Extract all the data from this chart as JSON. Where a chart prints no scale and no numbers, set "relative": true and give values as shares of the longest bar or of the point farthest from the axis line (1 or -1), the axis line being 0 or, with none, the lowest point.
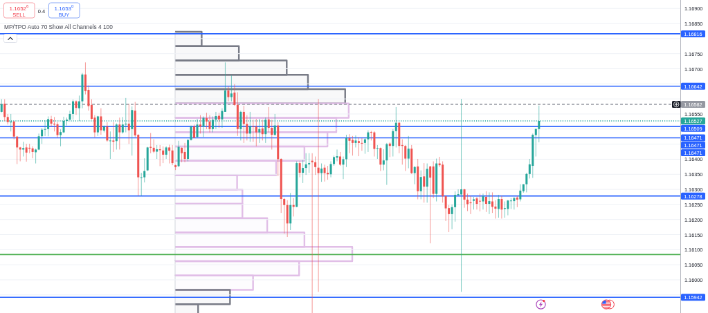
{
  "chart_data": [
    {
      "type": "candlestick",
      "title": "MP/TPO Auto 70 Show All Channels 4 100",
      "annotations": [
        "1.1652$^{6}$",
        "SELL",
        "0.4",
        "1.1653$^{0}$",
        "BUY",
        "1.16471",
        "1.16471"
      ],
      "categories": [
        null,
        null,
        null,
        null,
        null,
        null,
        null,
        null,
        null,
        null,
        null,
        null,
        null,
        null,
        null,
        null,
        null,
        null,
        null,
        null,
        null,
        null,
        null,
        null,
        null,
        null,
        null,
        null,
        null,
        null,
        null,
        null,
        null,
        null,
        null,
        null,
        null,
        null,
        null,
        null,
        null,
        null,
        null,
        null,
        null,
        null,
        null,
        null,
        null,
        null,
        null,
        null,
        null,
        null,
        null,
        null,
        null,
        null,
        null,
        null,
        null,
        null,
        null,
        null,
        null,
        null,
        null,
        null,
        null,
        null,
        null,
        null,
        null,
        null,
        null,
        null,
        null,
        null,
        null,
        null,
        null,
        null,
        null,
        null,
        null,
        null,
        null,
        null,
        null,
        null,
        null,
        null,
        null,
        null,
        null,
        null,
        null,
        null,
        null,
        null,
        null,
        null,
        null,
        null,
        null,
        null,
        null,
        null,
        null,
        null,
        null,
        null,
        null,
        null,
        null,
        null,
        null,
        null,
        null,
        null,
        null,
        null,
        null,
        null,
        null,
        null,
        null,
        null,
        null,
        null,
        null,
        null,
        null,
        null,
        null,
        null,
        null,
        null,
        null,
        null,
        null,
        null,
        null,
        null,
        null,
        null,
        null,
        null,
        null,
        null,
        null,
        null,
        null,
        null,
        null,
        null,
        null,
        null,
        null,
        null,
        null,
        null,
        null,
        null,
        null,
        null,
        null,
        null,
        null,
        null,
        null,
        null,
        null,
        null,
        null,
        null,
        null,
        null,
        null,
        null,
        null,
        null,
        null,
        null,
        null,
        null,
        null,
        null,
        null,
        null,
        null,
        null,
        null,
        null,
        null,
        null,
        null,
        null,
        null,
        null,
        null,
        null,
        null,
        null,
        null,
        null,
        null,
        null,
        null,
        null,
        null,
        null,
        null,
        null,
        null,
        null,
        null,
        null,
        null
      ],
      "ohlc": [
        [
          1.16557,
          1.16599,
          1.16555,
          1.16582
        ],
        [
          1.16584,
          1.16599,
          1.16527,
          1.1654
        ],
        [
          1.1654,
          1.1655,
          1.16515,
          1.16523
        ],
        [
          1.16522,
          1.1655,
          1.16492,
          1.16525
        ],
        [
          1.16525,
          1.16527,
          1.16466,
          1.16475
        ],
        [
          1.16475,
          1.16477,
          1.16384,
          1.16439
        ],
        [
          1.16439,
          1.16441,
          1.16393,
          1.16432
        ],
        [
          1.16432,
          1.16458,
          1.16409,
          1.16437
        ],
        [
          1.16439,
          1.16451,
          1.16392,
          1.16422
        ],
        [
          1.16438,
          1.16451,
          1.1642,
          1.16435
        ],
        [
          1.16436,
          1.16443,
          1.16403,
          1.16424
        ],
        [
          1.16423,
          1.16435,
          1.16386,
          1.16432
        ],
        [
          1.16432,
          1.16485,
          1.1643,
          1.16476
        ],
        [
          1.16476,
          1.16504,
          1.16451,
          1.16498
        ],
        [
          1.16498,
          1.16529,
          1.16477,
          1.165
        ],
        [
          1.165,
          1.16542,
          1.16476,
          1.16533
        ],
        [
          1.16533,
          1.16544,
          1.16508,
          1.16518
        ],
        [
          1.16518,
          1.1654,
          1.16492,
          1.16515
        ],
        [
          1.16516,
          1.16523,
          1.16471,
          1.1648
        ],
        [
          1.1648,
          1.16499,
          1.16443,
          1.1649
        ],
        [
          1.16489,
          1.16541,
          1.16487,
          1.16527
        ],
        [
          1.16527,
          1.16538,
          1.16512,
          1.16531
        ],
        [
          1.16531,
          1.16561,
          1.16529,
          1.1655
        ],
        [
          1.1655,
          1.16598,
          1.16531,
          1.16592
        ],
        [
          1.16592,
          1.16595,
          1.16547,
          1.1657
        ],
        [
          1.16569,
          1.16611,
          1.16527,
          1.16592
        ],
        [
          1.16592,
          1.16686,
          1.16569,
          1.16681
        ],
        [
          1.16681,
          1.16721,
          1.16615,
          1.16626
        ],
        [
          1.1663,
          1.16645,
          1.16561,
          1.16576
        ],
        [
          1.1658,
          1.16599,
          1.16531,
          1.16534
        ],
        [
          1.16538,
          1.16546,
          1.16473,
          1.16489
        ],
        [
          1.16489,
          1.16544,
          1.16477,
          1.16542
        ],
        [
          1.16542,
          1.16569,
          1.16481,
          1.16496
        ],
        [
          1.16495,
          1.16512,
          1.16489,
          1.16508
        ],
        [
          1.16509,
          1.16523,
          1.16458,
          1.16462
        ],
        [
          1.1646,
          1.16492,
          1.16401,
          1.16462
        ],
        [
          1.16462,
          1.16523,
          1.16424,
          1.16458
        ],
        [
          1.1646,
          1.16519,
          1.16432,
          1.16515
        ],
        [
          1.16515,
          1.16538,
          1.16432,
          1.16489
        ],
        [
          1.16489,
          1.1654,
          1.16485,
          1.16515
        ],
        [
          1.16515,
          1.16603,
          1.16489,
          1.16518
        ],
        [
          1.16518,
          1.16584,
          1.16451,
          1.16496
        ],
        [
          1.165,
          1.16575,
          1.16412,
          1.16563
        ],
        [
          1.16561,
          1.1659,
          1.16473,
          1.16479
        ],
        [
          1.16481,
          1.16483,
          1.16279,
          1.1634
        ],
        [
          1.16338,
          1.16355,
          1.16279,
          1.1634
        ],
        [
          1.1634,
          1.16403,
          1.16323,
          1.16361
        ],
        [
          1.16363,
          1.16441,
          1.16361,
          1.16439
        ],
        [
          1.16441,
          1.16487,
          1.1642,
          1.16438
        ],
        [
          1.16438,
          1.16466,
          1.1642,
          1.16425
        ],
        [
          1.16425,
          1.16447,
          1.16401,
          1.16433
        ],
        [
          1.16433,
          1.16447,
          1.16377,
          1.1643
        ],
        [
          1.16429,
          1.16443,
          1.16387,
          1.16415
        ],
        [
          1.16415,
          1.16443,
          1.16401,
          1.16439
        ],
        [
          1.16439,
          1.16448,
          1.16386,
          1.16428
        ],
        [
          1.16429,
          1.16447,
          1.1638,
          1.16387
        ],
        [
          1.1638,
          1.16382,
          1.16364,
          1.16374
        ],
        [
          1.16377,
          1.16461,
          1.16374,
          1.16441
        ],
        [
          1.16438,
          1.16439,
          1.1639,
          1.1642
        ],
        [
          1.16424,
          1.16454,
          1.1639,
          1.16401
        ],
        [
          1.16401,
          1.16466,
          1.16393,
          1.16464
        ],
        [
          1.16464,
          1.16512,
          1.16462,
          1.16508
        ],
        [
          1.16509,
          1.16515,
          1.1647,
          1.16471
        ],
        [
          1.16474,
          1.16534,
          1.16471,
          1.16515
        ],
        [
          1.16515,
          1.16546,
          1.16485,
          1.16508
        ],
        [
          1.16508,
          1.16542,
          1.16474,
          1.16537
        ],
        [
          1.16536,
          1.16554,
          1.165,
          1.16525
        ],
        [
          1.16525,
          1.16546,
          1.16489,
          1.165
        ],
        [
          1.165,
          1.16542,
          1.16489,
          1.16531
        ],
        [
          1.16531,
          1.16557,
          1.165,
          1.16543
        ],
        [
          1.16544,
          1.16554,
          1.16504,
          1.16532
        ],
        [
          1.16532,
          1.16569,
          1.16504,
          1.1656
        ],
        [
          1.16557,
          1.16721,
          1.16557,
          1.16628
        ],
        [
          1.16628,
          1.16641,
          1.16592,
          1.16606
        ],
        [
          1.16606,
          1.16678,
          1.16592,
          1.16618
        ],
        [
          1.16621,
          1.16649,
          1.16577,
          1.1658
        ],
        [
          1.1658,
          1.16622,
          1.16477,
          1.165
        ],
        [
          1.165,
          1.16561,
          1.16462,
          1.16557
        ],
        [
          1.16557,
          1.16577,
          1.16454,
          1.16517
        ],
        [
          1.16517,
          1.16546,
          1.16462,
          1.16485
        ],
        [
          1.16485,
          1.16557,
          1.16458,
          1.16509
        ],
        [
          1.16509,
          1.16531,
          1.16458,
          1.16507
        ],
        [
          1.16508,
          1.16534,
          1.16443,
          1.16489
        ],
        [
          1.16489,
          1.16534,
          1.16454,
          1.165
        ],
        [
          1.16502,
          1.16531,
          1.16462,
          1.16483
        ],
        [
          1.16483,
          1.16538,
          1.16454,
          1.16531
        ],
        [
          1.16532,
          1.16573,
          1.16489,
          1.16504
        ],
        [
          1.16504,
          1.16531,
          1.16432,
          1.16481
        ],
        [
          1.16481,
          1.1655,
          1.16477,
          1.16512
        ],
        [
          1.16512,
          1.16523,
          1.16344,
          1.164
        ],
        [
          1.16401,
          1.16403,
          1.16222,
          1.16268
        ],
        [
          1.16268,
          1.16271,
          1.16153,
          1.16248
        ],
        [
          1.16248,
          1.16264,
          1.16142,
          1.16187
        ],
        [
          1.16187,
          1.16288,
          1.16165,
          1.16248
        ],
        [
          1.16248,
          1.16271,
          1.1621,
          1.16242
        ],
        [
          1.16242,
          1.16393,
          1.16241,
          1.16387
        ],
        [
          1.16387,
          1.16393,
          1.1634,
          1.16355
        ],
        [
          1.16355,
          1.16397,
          1.16321,
          1.16371
        ],
        [
          1.16371,
          1.1642,
          1.16348,
          1.16383
        ],
        [
          1.16383,
          1.1642,
          1.16355,
          1.16387
        ],
        [
          1.16395,
          1.1642,
          1.1589,
          1.1639
        ],
        [
          1.1639,
          1.16409,
          1.16348,
          1.16374
        ],
        [
          1.16372,
          1.166,
          1.1596,
          1.16354
        ],
        [
          1.16354,
          1.16386,
          1.16325,
          1.16369
        ],
        [
          1.16372,
          1.16382,
          1.16326,
          1.16354
        ],
        [
          1.16355,
          1.16378,
          1.16332,
          1.1635
        ],
        [
          1.1635,
          1.16393,
          1.1634,
          1.16384
        ],
        [
          1.16384,
          1.16412,
          1.16378,
          1.16407
        ],
        [
          1.16405,
          1.16432,
          1.16393,
          1.1641
        ],
        [
          1.16409,
          1.16424,
          1.16378,
          1.16382
        ],
        [
          1.16382,
          1.16409,
          1.16334,
          1.164
        ],
        [
          1.164,
          1.16481,
          1.16374,
          1.1647
        ],
        [
          1.1647,
          1.16483,
          1.1642,
          1.16461
        ],
        [
          1.16464,
          1.16477,
          1.16412,
          1.16454
        ],
        [
          1.16454,
          1.16479,
          1.16439,
          1.16462
        ],
        [
          1.1646,
          1.16473,
          1.1641,
          1.16454
        ],
        [
          1.16454,
          1.1647,
          1.16428,
          1.16452
        ],
        [
          1.16454,
          1.16473,
          1.16418,
          1.16466
        ],
        [
          1.16466,
          1.16496,
          1.16424,
          1.16489
        ],
        [
          1.1649,
          1.16494,
          1.16462,
          1.16488
        ],
        [
          1.16489,
          1.16493,
          1.16409,
          1.16434
        ],
        [
          1.16435,
          1.16447,
          1.16401,
          1.16437
        ],
        [
          1.16437,
          1.16439,
          1.16361,
          1.16382
        ],
        [
          1.16382,
          1.16433,
          1.16363,
          1.16396
        ],
        [
          1.16396,
          1.16454,
          1.16315,
          1.1645
        ],
        [
          1.16452,
          1.16456,
          1.16407,
          1.16444
        ],
        [
          1.16444,
          1.165,
          1.16409,
          1.16493
        ],
        [
          1.16493,
          1.16573,
          1.16439,
          1.16521
        ],
        [
          1.16521,
          1.16523,
          1.1642,
          1.16444
        ],
        [
          1.16447,
          1.16466,
          1.16382,
          1.16444
        ],
        [
          1.16444,
          1.16447,
          1.16361,
          1.16402
        ],
        [
          1.16402,
          1.16477,
          1.1637,
          1.16435
        ],
        [
          1.16435,
          1.16447,
          1.16351,
          1.16354
        ],
        [
          1.16354,
          1.16378,
          1.16317,
          1.16374
        ],
        [
          1.16376,
          1.16401,
          1.16267,
          1.16294
        ],
        [
          1.16294,
          1.16363,
          1.16267,
          1.16341
        ],
        [
          1.16343,
          1.16387,
          1.16256,
          1.16309
        ],
        [
          1.16309,
          1.16386,
          1.16256,
          1.16368
        ],
        [
          1.16376,
          1.16378,
          1.16121,
          1.16339
        ],
        [
          1.16376,
          1.16393,
          1.16271,
          1.16285
        ],
        [
          1.16285,
          1.16402,
          1.1626,
          1.16386
        ],
        [
          1.16386,
          1.16408,
          1.16374,
          1.1638
        ],
        [
          1.16382,
          1.16393,
          1.16256,
          1.16277
        ],
        [
          1.16277,
          1.16279,
          1.16195,
          1.16237
        ],
        [
          1.16238,
          1.16248,
          1.16158,
          1.16218
        ],
        [
          1.16218,
          1.1625,
          1.16168,
          1.16241
        ],
        [
          1.16241,
          1.16294,
          1.16193,
          1.16282
        ],
        [
          1.16281,
          1.163,
          1.16279,
          1.16284
        ],
        [
          1.16283,
          1.166,
          1.1596,
          1.163
        ],
        [
          1.163,
          1.16302,
          1.16239,
          1.16266
        ],
        [
          1.16266,
          1.16286,
          1.16228,
          1.16251
        ],
        [
          1.16257,
          1.16279,
          1.16218,
          1.16254
        ],
        [
          1.16262,
          1.16275,
          1.16233,
          1.16267
        ],
        [
          1.1627,
          1.16275,
          1.16233,
          1.16252
        ],
        [
          1.16262,
          1.16286,
          1.16227,
          1.16261
        ],
        [
          1.1626,
          1.16286,
          1.16233,
          1.16277
        ],
        [
          1.16275,
          1.16294,
          1.16225,
          1.16252
        ],
        [
          1.16252,
          1.1629,
          1.16218,
          1.16261
        ],
        [
          1.1626,
          1.1629,
          1.16222,
          1.16242
        ],
        [
          1.16243,
          1.16264,
          1.16203,
          1.16236
        ],
        [
          1.16235,
          1.16282,
          1.16206,
          1.16268
        ],
        [
          1.16268,
          1.16279,
          1.16203,
          1.16233
        ],
        [
          1.16235,
          1.1626,
          1.16206,
          1.16238
        ],
        [
          1.16235,
          1.16265,
          1.16214,
          1.16263
        ],
        [
          1.16261,
          1.16271,
          1.16235,
          1.16263
        ],
        [
          1.16261,
          1.16275,
          1.16233,
          1.16271
        ],
        [
          1.16273,
          1.16279,
          1.16241,
          1.16266
        ],
        [
          1.16267,
          1.16317,
          1.1626,
          1.16296
        ],
        [
          1.16294,
          1.16317,
          1.16289,
          1.16317
        ],
        [
          1.16317,
          1.16355,
          1.1629,
          1.16351
        ],
        [
          1.16351,
          1.16401,
          1.16336,
          1.16383
        ],
        [
          1.16378,
          1.16485,
          1.16338,
          1.16481
        ],
        [
          1.1648,
          1.16502,
          1.16409,
          1.165
        ],
        [
          1.165,
          1.16578,
          1.16456,
          1.16527
        ],
        null,
        null,
        null,
        null,
        null,
        null,
        null,
        null,
        null,
        null,
        null,
        null,
        null,
        null,
        null,
        null,
        null,
        null,
        null,
        null,
        null,
        null,
        null,
        null,
        null,
        null,
        null,
        null,
        null,
        null,
        null,
        null,
        null,
        null,
        null,
        null,
        null,
        null,
        null,
        null,
        null,
        null,
        null,
        null,
        null
      ],
      "colors": [
        "#26a69a",
        "#ef5350",
        "#ef5350",
        "#26a69a",
        "#ef5350",
        "#ef5350",
        "#ef5350",
        "#26a69a",
        "#ef5350",
        "#ef5350",
        "#ef5350",
        "#26a69a",
        "#26a69a",
        "#26a69a",
        "#26a69a",
        "#26a69a",
        "#ef5350",
        "#ef5350",
        "#ef5350",
        "#26a69a",
        "#26a69a",
        "#26a69a",
        "#26a69a",
        "#26a69a",
        "#ef5350",
        "#26a69a",
        "#26a69a",
        "#ef5350",
        "#ef5350",
        "#ef5350",
        "#ef5350",
        "#26a69a",
        "#ef5350",
        "#26a69a",
        "#ef5350",
        "#26a69a",
        "#ef5350",
        "#26a69a",
        "#ef5350",
        "#26a69a",
        "#26a69a",
        "#ef5350",
        "#26a69a",
        "#ef5350",
        "#ef5350",
        "#26a69a",
        "#26a69a",
        "#26a69a",
        "#ef5350",
        "#ef5350",
        "#26a69a",
        "#ef5350",
        "#ef5350",
        "#26a69a",
        "#ef5350",
        "#ef5350",
        "#ef5350",
        "#26a69a",
        "#ef5350",
        "#ef5350",
        "#26a69a",
        "#26a69a",
        "#ef5350",
        "#26a69a",
        "#ef5350",
        "#26a69a",
        "#ef5350",
        "#ef5350",
        "#26a69a",
        "#26a69a",
        "#ef5350",
        "#26a69a",
        "#26a69a",
        "#ef5350",
        "#26a69a",
        "#ef5350",
        "#ef5350",
        "#26a69a",
        "#ef5350",
        "#ef5350",
        "#26a69a",
        "#ef5350",
        "#ef5350",
        "#26a69a",
        "#ef5350",
        "#26a69a",
        "#ef5350",
        "#ef5350",
        "#26a69a",
        "#ef5350",
        "#ef5350",
        "#ef5350",
        "#ef5350",
        "#26a69a",
        "#ef5350",
        "#26a69a",
        "#ef5350",
        "#26a69a",
        "#26a69a",
        "#26a69a",
        "#ef5350",
        "#ef5350",
        "#ef5350",
        "#26a69a",
        "#ef5350",
        "#ef5350",
        "#26a69a",
        "#26a69a",
        "#26a69a",
        "#ef5350",
        "#26a69a",
        "#26a69a",
        "#ef5350",
        "#ef5350",
        "#26a69a",
        "#ef5350",
        "#ef5350",
        "#26a69a",
        "#26a69a",
        "#ef5350",
        "#ef5350",
        "#26a69a",
        "#ef5350",
        "#26a69a",
        "#26a69a",
        "#ef5350",
        "#26a69a",
        "#26a69a",
        "#ef5350",
        "#ef5350",
        "#ef5350",
        "#26a69a",
        "#ef5350",
        "#26a69a",
        "#ef5350",
        "#26a69a",
        "#ef5350",
        "#26a69a",
        "#ef5350",
        "#ef5350",
        "#26a69a",
        "#ef5350",
        "#ef5350",
        "#ef5350",
        "#ef5350",
        "#26a69a",
        "#26a69a",
        "#26a69a",
        "#26a69a",
        "#ef5350",
        "#ef5350",
        "#ef5350",
        "#26a69a",
        "#ef5350",
        "#ef5350",
        "#26a69a",
        "#ef5350",
        "#26a69a",
        "#ef5350",
        "#ef5350",
        "#26a69a",
        "#ef5350",
        "#26a69a",
        "#26a69a",
        "#26a69a",
        "#26a69a",
        "#ef5350",
        "#26a69a",
        "#26a69a",
        "#26a69a",
        "#26a69a",
        "#26a69a",
        "#26a69a",
        "#26a69a",
        null,
        null,
        null,
        null,
        null,
        null,
        null,
        null,
        null,
        null,
        null,
        null,
        null,
        null,
        null,
        null,
        null,
        null,
        null,
        null,
        null,
        null,
        null,
        null,
        null,
        null,
        null,
        null,
        null,
        null,
        null,
        null,
        null,
        null,
        null,
        null,
        null,
        null,
        null,
        null,
        null,
        null,
        null,
        null,
        null
      ],
      "ylim": [
        1.1589,
        1.16928
      ],
      "yticks": [
        {
          "value": 1.1595,
          "label": null
        },
        {
          "value": 1.16,
          "label": "1.16000"
        },
        {
          "value": 1.1605,
          "label": "1.16050"
        },
        {
          "value": 1.161,
          "label": "1.16100"
        },
        {
          "value": 1.1615,
          "label": "1.16150"
        },
        {
          "value": 1.162,
          "label": "1.16200"
        },
        {
          "value": 1.1625,
          "label": "1.16250"
        },
        {
          "value": 1.163,
          "label": "1.16300"
        },
        {
          "value": 1.1635,
          "label": "1.16350"
        },
        {
          "value": 1.164,
          "label": "1.16400"
        },
        {
          "value": 1.1645,
          "label": null
        },
        {
          "value": 1.165,
          "label": null
        },
        {
          "value": 1.1655,
          "label": "1.16550"
        },
        {
          "value": 1.166,
          "label": null
        },
        {
          "value": 1.1665,
          "label": null
        },
        {
          "value": 1.167,
          "label": "1.16700"
        },
        {
          "value": 1.1675,
          "label": "1.16750"
        },
        {
          "value": 1.168,
          "label": null
        },
        {
          "value": 1.1685,
          "label": "1.16850"
        },
        {
          "value": 1.169,
          "label": "1.16900"
        }
      ],
      "grid": "y",
      "tick_labels": "y",
      "ref_lines": [
        {
          "axis": "y",
          "value": 1.16816,
          "label": "1.16816",
          "color": "#2962ff"
        },
        {
          "axis": "y",
          "value": 1.16642,
          "label": "1.16642",
          "color": "#2962ff"
        },
        {
          "axis": "y",
          "value": 1.16582,
          "label": "1.16582",
          "color": "#9598a1",
          "line_style": "dashed"
        },
        {
          "axis": "y",
          "value": 1.16527,
          "label": "1.16527",
          "color": "#26a69a",
          "line_style": "dotted"
        },
        {
          "axis": "y",
          "value": 1.16509,
          "label": "1.16509",
          "color": "#2962ff"
        },
        {
          "axis": "y",
          "value": 1.16471,
          "label": "1.16471",
          "color": "#2962ff"
        },
        {
          "axis": "y",
          "value": 1.16278,
          "label": "1.16278",
          "color": "#2962ff"
        },
        {
          "axis": "y",
          "value": 1.16084,
          "color": "#4caf50"
        },
        {
          "axis": "y",
          "value": 1.15942,
          "label": "1.15942",
          "color": "#2962ff"
        }
      ]
    },
    {
      "type": "bar",
      "orientation": "horizontal",
      "relative": true,
      "categories": [
        null,
        null,
        null,
        null,
        null,
        null,
        null,
        null,
        null,
        null,
        null,
        null,
        null,
        null,
        null,
        null,
        null,
        null,
        null,
        null
      ],
      "values": [
        0.15,
        0.36,
        0.63,
        0.75,
        0.96,
        0.98,
        0.91,
        0.86,
        0.73,
        0.57,
        0.35,
        0.38,
        0.38,
        0.52,
        0.73,
        1,
        0.7,
        0.44,
        0.31,
        0.13
      ],
      "colors": [
        "#787b86",
        "#787b86",
        "#787b86",
        "#787b86",
        "#787b86",
        "#e1bee7",
        "#e1bee7",
        "#e1bee7",
        "#e1bee7",
        "#e1bee7",
        "#e1bee7",
        "#e1bee7",
        "#e1bee7",
        "#e1bee7",
        "#e1bee7",
        "#e1bee7",
        "#e1bee7",
        "#e1bee7",
        "#787b86",
        "#787b86"
      ],
      "tick_labels": false
    }
  ]
}
